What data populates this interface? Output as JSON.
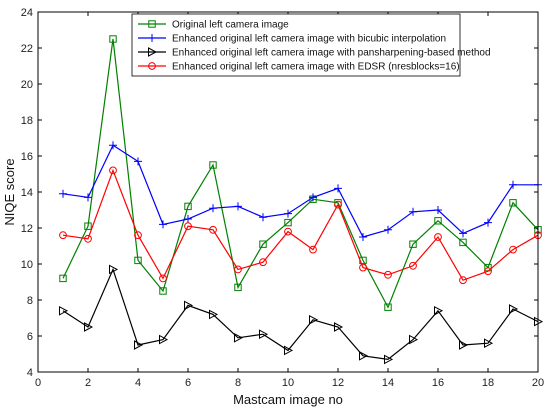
{
  "chart_data": {
    "type": "line",
    "xlabel": "Mastcam image no",
    "ylabel": "NIQE score",
    "xlim": [
      0,
      20
    ],
    "ylim": [
      4,
      24
    ],
    "xticks": [
      0,
      2,
      4,
      6,
      8,
      10,
      12,
      14,
      16,
      18,
      20
    ],
    "yticks": [
      4,
      6,
      8,
      10,
      12,
      14,
      16,
      18,
      20,
      22,
      24
    ],
    "grid": false,
    "legend_position": "top-center",
    "x": [
      1,
      2,
      3,
      4,
      5,
      6,
      7,
      8,
      9,
      10,
      11,
      12,
      13,
      14,
      15,
      16,
      17,
      18,
      19,
      20
    ],
    "series": [
      {
        "name": "Original left camera image",
        "color": "#008000",
        "marker": "square",
        "values": [
          9.2,
          12.1,
          22.5,
          10.2,
          8.5,
          13.2,
          15.5,
          8.7,
          11.1,
          12.3,
          13.6,
          13.4,
          10.2,
          7.6,
          11.1,
          12.4,
          11.2,
          9.8,
          13.4,
          11.9
        ]
      },
      {
        "name": "Enhanced original left camera image with bicubic interpolation",
        "color": "#0000ff",
        "marker": "plus",
        "values": [
          13.9,
          13.7,
          16.6,
          15.7,
          12.2,
          12.5,
          13.1,
          13.2,
          12.6,
          12.8,
          13.7,
          14.2,
          11.5,
          11.9,
          12.9,
          13.0,
          11.7,
          12.3,
          14.4,
          14.4
        ]
      },
      {
        "name": "Enhanced original left camera image with pansharpening-based method",
        "color": "#000000",
        "marker": "triangle-right",
        "values": [
          7.4,
          6.5,
          9.7,
          5.5,
          5.8,
          7.7,
          7.2,
          5.9,
          6.1,
          5.2,
          6.9,
          6.5,
          4.9,
          4.7,
          5.8,
          7.4,
          5.5,
          5.6,
          7.5,
          6.8
        ]
      },
      {
        "name": "Enhanced original left camera image with EDSR (nresblocks=16)",
        "color": "#ff0000",
        "marker": "circle",
        "values": [
          11.6,
          11.4,
          15.2,
          11.6,
          9.2,
          12.1,
          11.9,
          9.7,
          10.1,
          11.8,
          10.8,
          13.3,
          9.8,
          9.4,
          9.9,
          11.5,
          9.1,
          9.6,
          10.8,
          11.6
        ]
      }
    ]
  }
}
